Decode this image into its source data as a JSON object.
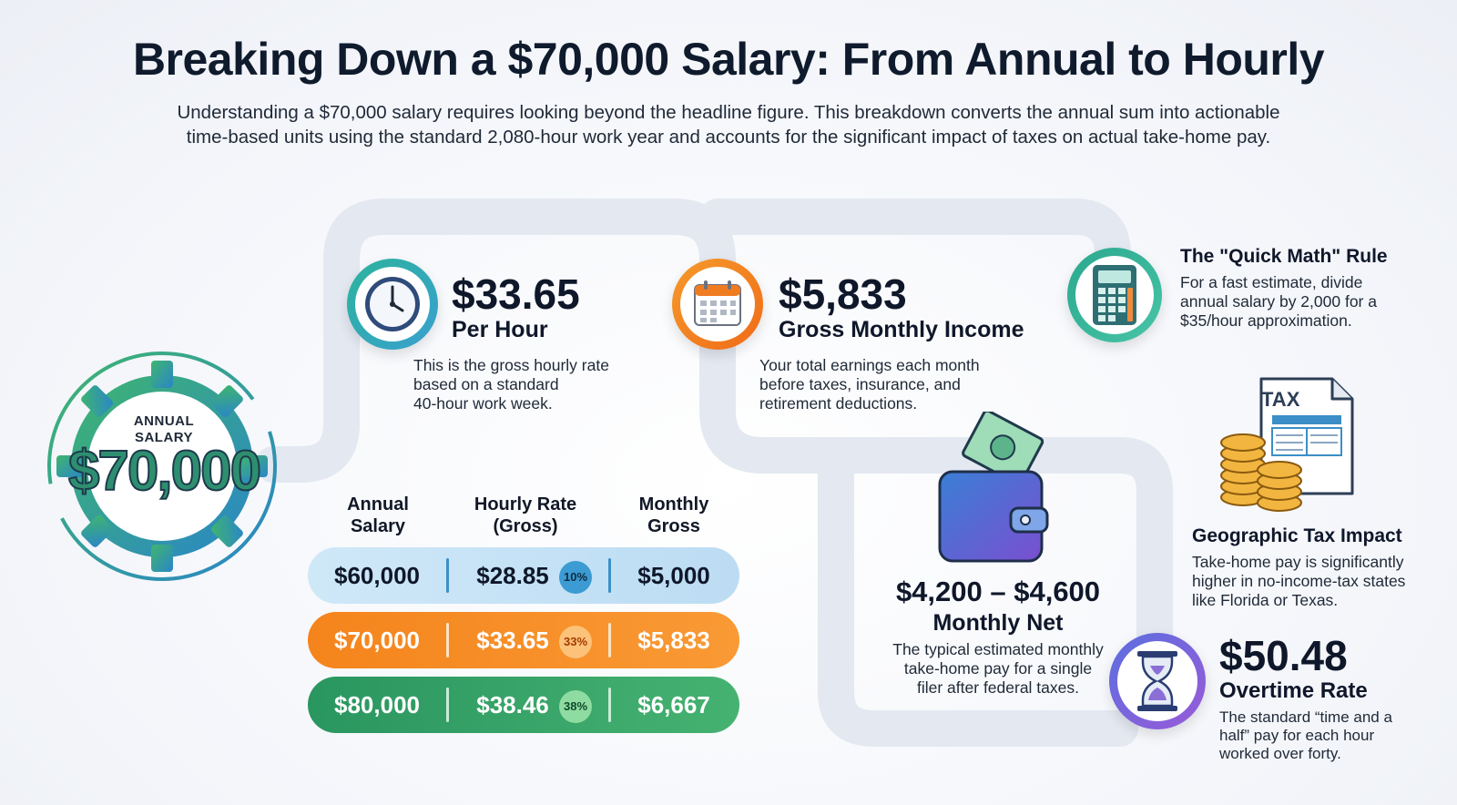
{
  "title": "Breaking Down a $70,000 Salary: From Annual to Hourly",
  "subtitle_line1": "Understanding a $70,000 salary requires looking beyond the headline figure. This breakdown converts the annual sum into actionable",
  "subtitle_line2": "time-based units using the standard 2,080-hour work year and accounts for the significant impact of taxes on actual take-home pay.",
  "hero": {
    "label_line1": "ANNUAL",
    "label_line2": "SALARY",
    "value": "$70,000"
  },
  "hourly": {
    "value": "$33.65",
    "label": "Per Hour",
    "desc_line1": "This is the gross hourly rate",
    "desc_line2": "based on a standard",
    "desc_line3": "40-hour work week.",
    "icon": "clock-icon"
  },
  "monthly_gross": {
    "value": "$5,833",
    "label": "Gross Monthly Income",
    "desc_line1": "Your total earnings each month",
    "desc_line2": "before taxes, insurance, and",
    "desc_line3": "retirement deductions.",
    "icon": "calendar-icon"
  },
  "quick_math": {
    "title": "The \"Quick Math\" Rule",
    "desc_line1": "For a fast estimate, divide",
    "desc_line2": "annual salary by 2,000 for a",
    "desc_line3": "$35/hour approximation.",
    "icon": "calculator-icon"
  },
  "geo_tax": {
    "icon_text": "TAX",
    "title": "Geographic Tax Impact",
    "desc_line1": "Take-home pay is significantly",
    "desc_line2": "higher in no-income-tax states",
    "desc_line3": "like Florida or Texas.",
    "icon": "tax-document-coins-icon"
  },
  "monthly_net": {
    "value": "$4,200 – $4,600",
    "label": "Monthly Net",
    "desc_line1": "The typical estimated monthly",
    "desc_line2": "take-home pay for a single",
    "desc_line3": "filer after federal taxes.",
    "icon": "wallet-icon"
  },
  "overtime": {
    "value": "$50.48",
    "label": "Overtime Rate",
    "desc_line1": "The standard “time and a",
    "desc_line2": "half” pay for each hour",
    "desc_line3": "worked over forty.",
    "icon": "hourglass-icon"
  },
  "table": {
    "headers": [
      {
        "line1": "Annual",
        "line2": "Salary"
      },
      {
        "line1": "Hourly Rate",
        "line2": "(Gross)"
      },
      {
        "line1": "Monthly",
        "line2": "Gross"
      }
    ],
    "rows": [
      {
        "annual": "$60,000",
        "hourly": "$28.85",
        "pct": "10%",
        "monthly": "$5,000",
        "color": "#c9e4f6"
      },
      {
        "annual": "$70,000",
        "hourly": "$33.65",
        "pct": "33%",
        "monthly": "$5,833",
        "color": "#f7851f"
      },
      {
        "annual": "$80,000",
        "hourly": "$38.46",
        "pct": "38%",
        "monthly": "$6,667",
        "color": "#2f9a62"
      }
    ]
  },
  "colors": {
    "teal": "#2ba39a",
    "orange": "#f28a1e",
    "blue": "#3b8fc6",
    "green": "#3aaa5c",
    "purple": "#7b5bd6"
  }
}
